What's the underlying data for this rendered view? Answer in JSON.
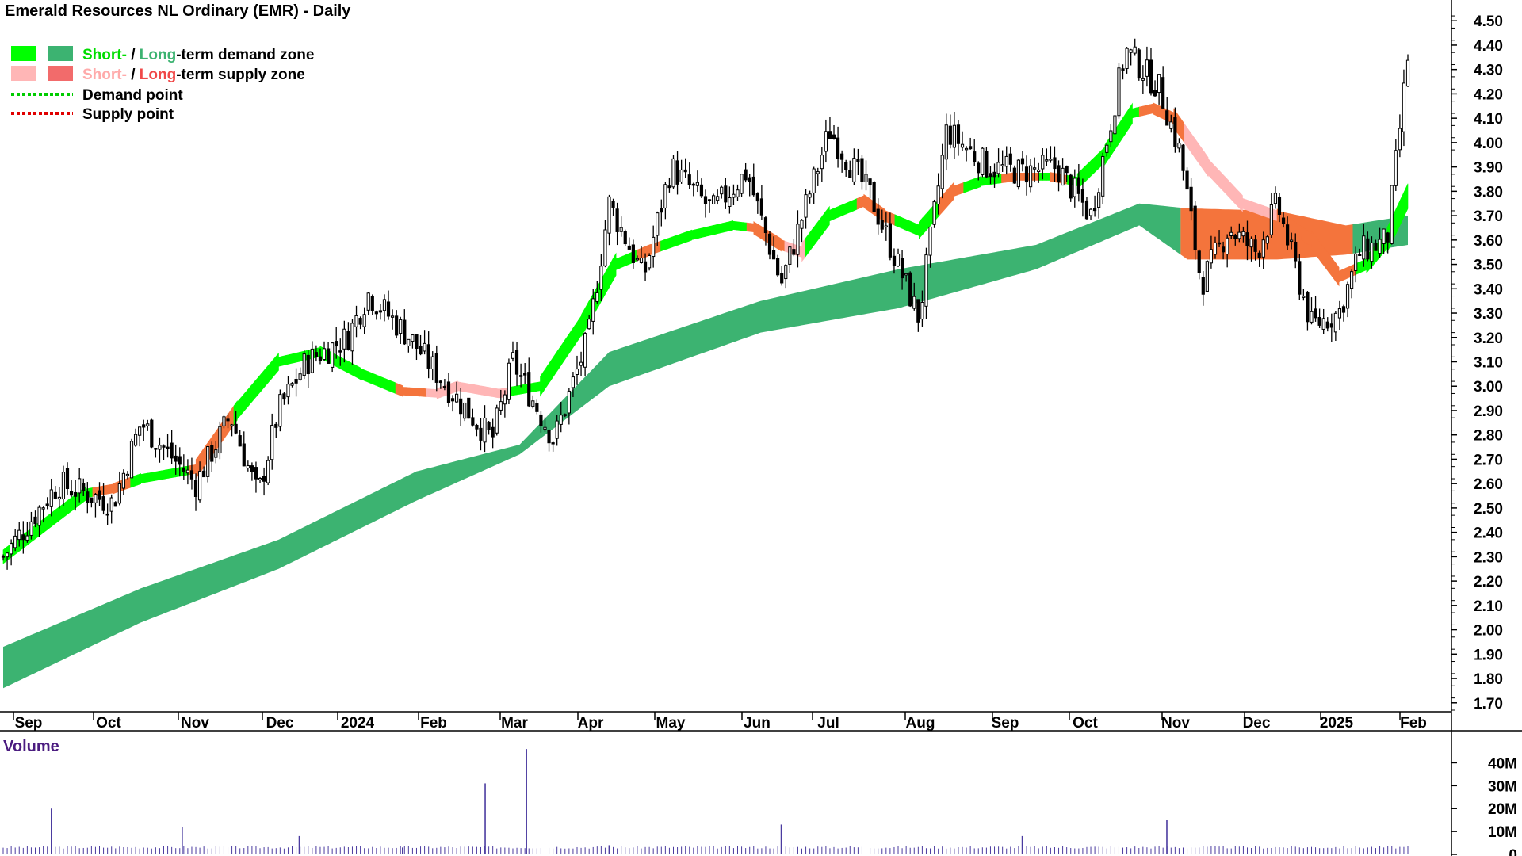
{
  "title": "Emerald Resources NL Ordinary (EMR) - Daily",
  "legend": {
    "demand_short": "Short-",
    "demand_sep": " / ",
    "demand_long": "Long",
    "demand_rest": "-term demand zone",
    "supply_short": "Short-",
    "supply_sep": " / ",
    "supply_long": "Long",
    "supply_rest": "-term supply zone",
    "demand_point": "Demand point",
    "supply_point": "Supply point"
  },
  "colors": {
    "short_demand": "#00ff00",
    "long_demand": "#3cb371",
    "short_supply": "#ffb6b6",
    "long_supply": "#f4743c",
    "demand_point": "#00cc00",
    "supply_point": "#e00000",
    "volume": "#4b3ca0",
    "candle": "#000000"
  },
  "volume_label": "Volume",
  "chart_data": {
    "type": "candlestick",
    "title": "Emerald Resources NL Ordinary (EMR) - Daily",
    "x_labels": [
      "Sep",
      "Oct",
      "Nov",
      "Dec",
      "2024",
      "Feb",
      "Mar",
      "Apr",
      "May",
      "Jun",
      "Jul",
      "Aug",
      "Sep",
      "Oct",
      "Nov",
      "Dec",
      "2025",
      "Feb"
    ],
    "y_ticks": [
      "1.70",
      "1.80",
      "1.90",
      "2.00",
      "2.10",
      "2.20",
      "2.30",
      "2.40",
      "2.50",
      "2.60",
      "2.70",
      "2.80",
      "2.90",
      "3.00",
      "3.10",
      "3.20",
      "3.30",
      "3.40",
      "3.50",
      "3.60",
      "3.70",
      "3.80",
      "3.90",
      "4.00",
      "4.10",
      "4.20",
      "4.30",
      "4.40",
      "4.50"
    ],
    "ylim": [
      1.67,
      4.53
    ],
    "price_path": [
      [
        0,
        2.3
      ],
      [
        8,
        2.6
      ],
      [
        16,
        2.52
      ],
      [
        20,
        2.85
      ],
      [
        28,
        2.6
      ],
      [
        33,
        2.88
      ],
      [
        37,
        2.55
      ],
      [
        40,
        2.9
      ],
      [
        44,
        3.1
      ],
      [
        50,
        3.2
      ],
      [
        53,
        3.38
      ],
      [
        59,
        3.2
      ],
      [
        65,
        2.98
      ],
      [
        71,
        2.78
      ],
      [
        74,
        3.1
      ],
      [
        80,
        2.78
      ],
      [
        85,
        3.2
      ],
      [
        88,
        3.75
      ],
      [
        93,
        3.45
      ],
      [
        97,
        3.9
      ],
      [
        103,
        3.72
      ],
      [
        108,
        3.88
      ],
      [
        113,
        3.42
      ],
      [
        120,
        4.05
      ],
      [
        126,
        3.78
      ],
      [
        133,
        3.28
      ],
      [
        137,
        4.05
      ],
      [
        143,
        3.9
      ],
      [
        148,
        3.88
      ],
      [
        153,
        3.9
      ],
      [
        158,
        3.7
      ],
      [
        163,
        4.38
      ],
      [
        168,
        4.22
      ],
      [
        171,
        3.95
      ],
      [
        174,
        3.42
      ],
      [
        178,
        3.65
      ],
      [
        182,
        3.55
      ],
      [
        185,
        3.75
      ],
      [
        188,
        3.45
      ],
      [
        190,
        3.25
      ],
      [
        194,
        3.3
      ],
      [
        197,
        3.55
      ],
      [
        201,
        3.6
      ],
      [
        204,
        4.35
      ]
    ],
    "short_zone_mid": [
      [
        0,
        2.3
      ],
      [
        12,
        2.56
      ],
      [
        16,
        2.58
      ],
      [
        20,
        2.62
      ],
      [
        28,
        2.66
      ],
      [
        34,
        2.9
      ],
      [
        40,
        3.1
      ],
      [
        46,
        3.14
      ],
      [
        52,
        3.05
      ],
      [
        58,
        2.98
      ],
      [
        63,
        2.97
      ],
      [
        66,
        3.0
      ],
      [
        72,
        2.97
      ],
      [
        78,
        3.0
      ],
      [
        84,
        3.25
      ],
      [
        89,
        3.5
      ],
      [
        94,
        3.56
      ],
      [
        100,
        3.62
      ],
      [
        106,
        3.66
      ],
      [
        109,
        3.65
      ],
      [
        113,
        3.58
      ],
      [
        116,
        3.55
      ],
      [
        120,
        3.7
      ],
      [
        125,
        3.76
      ],
      [
        128,
        3.7
      ],
      [
        133,
        3.64
      ],
      [
        138,
        3.8
      ],
      [
        142,
        3.84
      ],
      [
        147,
        3.86
      ],
      [
        152,
        3.86
      ],
      [
        156,
        3.84
      ],
      [
        160,
        3.95
      ],
      [
        164,
        4.12
      ],
      [
        167,
        4.14
      ],
      [
        170,
        4.1
      ],
      [
        175,
        3.9
      ],
      [
        180,
        3.75
      ],
      [
        185,
        3.7
      ],
      [
        190,
        3.6
      ],
      [
        194,
        3.45
      ],
      [
        198,
        3.5
      ],
      [
        201,
        3.6
      ],
      [
        204,
        3.78
      ]
    ],
    "long_zone": [
      [
        0,
        1.76,
        1.93
      ],
      [
        20,
        2.03,
        2.17
      ],
      [
        40,
        2.25,
        2.37
      ],
      [
        60,
        2.53,
        2.65
      ],
      [
        75,
        2.72,
        2.76
      ],
      [
        88,
        3.0,
        3.14
      ],
      [
        110,
        3.22,
        3.35
      ],
      [
        130,
        3.32,
        3.48
      ],
      [
        150,
        3.48,
        3.58
      ],
      [
        165,
        3.66,
        3.75
      ],
      [
        172,
        3.52,
        3.73
      ],
      [
        185,
        3.52,
        3.72
      ],
      [
        195,
        3.54,
        3.66
      ],
      [
        204,
        3.58,
        3.7
      ]
    ],
    "volume": {
      "y_ticks": [
        "0",
        "10M",
        "20M",
        "30M",
        "40M"
      ],
      "ylim": [
        0,
        45
      ],
      "spikes": [
        [
          7,
          20
        ],
        [
          26,
          12
        ],
        [
          43,
          8
        ],
        [
          58,
          3
        ],
        [
          70,
          31
        ],
        [
          76,
          46
        ],
        [
          88,
          4
        ],
        [
          113,
          13
        ],
        [
          148,
          8
        ],
        [
          169,
          15
        ]
      ],
      "base": 2.5
    },
    "legend_position": "top-left"
  }
}
